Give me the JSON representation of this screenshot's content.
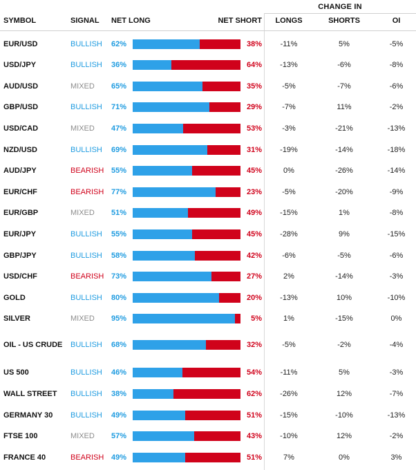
{
  "header": {
    "symbol": "SYMBOL",
    "signal": "SIGNAL",
    "net_long": "NET LONG",
    "net_short": "NET SHORT",
    "change_in": "CHANGE IN",
    "longs": "LONGS",
    "shorts": "SHORTS",
    "oi": "OI"
  },
  "colors": {
    "bullish": "#1e9be0",
    "bearish": "#d0021b",
    "mixed": "#8c8c8c",
    "long_bar": "#2ea1e8",
    "short_bar": "#d0021b"
  },
  "rows": [
    {
      "symbol": "EUR/USD",
      "signal": "BULLISH",
      "net_long": "62%",
      "net_short": "38%",
      "long_fraction": 0.62,
      "longs": "-11%",
      "shorts": "5%",
      "oi": "-5%"
    },
    {
      "symbol": "USD/JPY",
      "signal": "BULLISH",
      "net_long": "36%",
      "net_short": "64%",
      "long_fraction": 0.36,
      "longs": "-13%",
      "shorts": "-6%",
      "oi": "-8%"
    },
    {
      "symbol": "AUD/USD",
      "signal": "MIXED",
      "net_long": "65%",
      "net_short": "35%",
      "long_fraction": 0.65,
      "longs": "-5%",
      "shorts": "-7%",
      "oi": "-6%"
    },
    {
      "symbol": "GBP/USD",
      "signal": "BULLISH",
      "net_long": "71%",
      "net_short": "29%",
      "long_fraction": 0.71,
      "longs": "-7%",
      "shorts": "11%",
      "oi": "-2%"
    },
    {
      "symbol": "USD/CAD",
      "signal": "MIXED",
      "net_long": "47%",
      "net_short": "53%",
      "long_fraction": 0.47,
      "longs": "-3%",
      "shorts": "-21%",
      "oi": "-13%"
    },
    {
      "symbol": "NZD/USD",
      "signal": "BULLISH",
      "net_long": "69%",
      "net_short": "31%",
      "long_fraction": 0.69,
      "longs": "-19%",
      "shorts": "-14%",
      "oi": "-18%"
    },
    {
      "symbol": "AUD/JPY",
      "signal": "BEARISH",
      "net_long": "55%",
      "net_short": "45%",
      "long_fraction": 0.55,
      "longs": "0%",
      "shorts": "-26%",
      "oi": "-14%"
    },
    {
      "symbol": "EUR/CHF",
      "signal": "BEARISH",
      "net_long": "77%",
      "net_short": "23%",
      "long_fraction": 0.77,
      "longs": "-5%",
      "shorts": "-20%",
      "oi": "-9%"
    },
    {
      "symbol": "EUR/GBP",
      "signal": "MIXED",
      "net_long": "51%",
      "net_short": "49%",
      "long_fraction": 0.51,
      "longs": "-15%",
      "shorts": "1%",
      "oi": "-8%"
    },
    {
      "symbol": "EUR/JPY",
      "signal": "BULLISH",
      "net_long": "55%",
      "net_short": "45%",
      "long_fraction": 0.55,
      "longs": "-28%",
      "shorts": "9%",
      "oi": "-15%"
    },
    {
      "symbol": "GBP/JPY",
      "signal": "BULLISH",
      "net_long": "58%",
      "net_short": "42%",
      "long_fraction": 0.58,
      "longs": "-6%",
      "shorts": "-5%",
      "oi": "-6%"
    },
    {
      "symbol": "USD/CHF",
      "signal": "BEARISH",
      "net_long": "73%",
      "net_short": "27%",
      "long_fraction": 0.73,
      "longs": "2%",
      "shorts": "-14%",
      "oi": "-3%"
    },
    {
      "symbol": "GOLD",
      "signal": "BULLISH",
      "net_long": "80%",
      "net_short": "20%",
      "long_fraction": 0.8,
      "longs": "-13%",
      "shorts": "10%",
      "oi": "-10%"
    },
    {
      "symbol": "SILVER",
      "signal": "MIXED",
      "net_long": "95%",
      "net_short": "5%",
      "long_fraction": 0.95,
      "longs": "1%",
      "shorts": "-15%",
      "oi": "0%"
    },
    {
      "symbol": "OIL - US CRUDE",
      "signal": "BULLISH",
      "net_long": "68%",
      "net_short": "32%",
      "long_fraction": 0.68,
      "longs": "-5%",
      "shorts": "-2%",
      "oi": "-4%"
    },
    {
      "symbol": "US 500",
      "signal": "BULLISH",
      "net_long": "46%",
      "net_short": "54%",
      "long_fraction": 0.46,
      "longs": "-11%",
      "shorts": "5%",
      "oi": "-3%"
    },
    {
      "symbol": "WALL STREET",
      "signal": "BULLISH",
      "net_long": "38%",
      "net_short": "62%",
      "long_fraction": 0.38,
      "longs": "-26%",
      "shorts": "12%",
      "oi": "-7%"
    },
    {
      "symbol": "GERMANY 30",
      "signal": "BULLISH",
      "net_long": "49%",
      "net_short": "51%",
      "long_fraction": 0.49,
      "longs": "-15%",
      "shorts": "-10%",
      "oi": "-13%"
    },
    {
      "symbol": "FTSE 100",
      "signal": "MIXED",
      "net_long": "57%",
      "net_short": "43%",
      "long_fraction": 0.57,
      "longs": "-10%",
      "shorts": "12%",
      "oi": "-2%"
    },
    {
      "symbol": "FRANCE 40",
      "signal": "BEARISH",
      "net_long": "49%",
      "net_short": "51%",
      "long_fraction": 0.49,
      "longs": "7%",
      "shorts": "0%",
      "oi": "3%"
    }
  ]
}
